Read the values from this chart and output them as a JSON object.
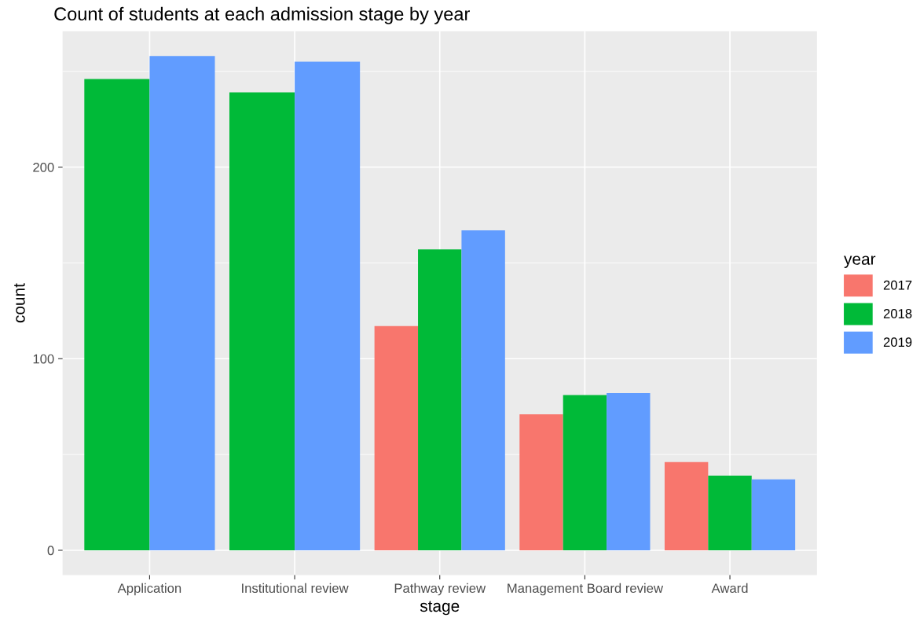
{
  "chart_data": {
    "type": "bar",
    "title": "Count of students at each admission stage by year",
    "xlabel": "stage",
    "ylabel": "count",
    "legend_title": "year",
    "categories": [
      "Application",
      "Institutional review",
      "Pathway review",
      "Management Board review",
      "Award"
    ],
    "series": [
      {
        "name": "2017",
        "color": "#f8766d",
        "values": [
          null,
          null,
          117,
          71,
          46
        ]
      },
      {
        "name": "2018",
        "color": "#00ba38",
        "values": [
          246,
          239,
          157,
          81,
          39
        ]
      },
      {
        "name": "2019",
        "color": "#619cff",
        "values": [
          258,
          255,
          167,
          82,
          37
        ]
      }
    ],
    "ylim": [
      -12.9,
      270.9
    ],
    "yticks": [
      0,
      100,
      200
    ],
    "grid": true,
    "legend": "right"
  }
}
